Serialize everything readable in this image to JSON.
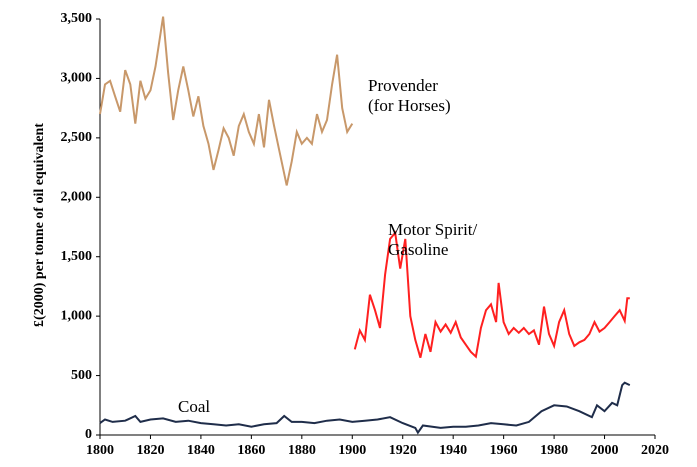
{
  "chart_data": {
    "type": "line",
    "y_label": "£(2000) per tonne of oil equivalent",
    "xlim": [
      1800,
      2020
    ],
    "xticks": [
      1800,
      1820,
      1840,
      1860,
      1880,
      1900,
      1920,
      1940,
      1960,
      1980,
      2000,
      2020
    ],
    "ylim": [
      0,
      3500
    ],
    "yticks": [
      0,
      500,
      {
        "value": 1000,
        "label": "1,000"
      },
      {
        "value": 1500,
        "label": "1,500"
      },
      {
        "value": 2000,
        "label": "2,000"
      },
      {
        "value": 2500,
        "label": "2,500"
      },
      {
        "value": 3000,
        "label": "3,000"
      },
      {
        "value": 3500,
        "label": "3,500"
      }
    ],
    "series": [
      {
        "name": "Provender (for Horses)",
        "labels": [
          "Provender",
          "(for Horses)"
        ],
        "color": "#c8986a",
        "x": [
          1800,
          1802,
          1804,
          1806,
          1808,
          1810,
          1812,
          1814,
          1816,
          1818,
          1820,
          1822,
          1825,
          1827,
          1829,
          1831,
          1833,
          1835,
          1837,
          1839,
          1841,
          1843,
          1845,
          1847,
          1849,
          1851,
          1853,
          1855,
          1857,
          1859,
          1861,
          1863,
          1865,
          1867,
          1869,
          1871,
          1874,
          1876,
          1878,
          1880,
          1882,
          1884,
          1886,
          1888,
          1890,
          1892,
          1894,
          1896,
          1898,
          1900
        ],
        "values": [
          2700,
          2950,
          2980,
          2850,
          2720,
          3070,
          2950,
          2620,
          2980,
          2830,
          2900,
          3100,
          3520,
          3050,
          2650,
          2900,
          3100,
          2900,
          2680,
          2850,
          2600,
          2450,
          2230,
          2400,
          2580,
          2500,
          2350,
          2600,
          2700,
          2550,
          2450,
          2700,
          2420,
          2820,
          2600,
          2400,
          2100,
          2300,
          2550,
          2450,
          2500,
          2450,
          2700,
          2550,
          2650,
          2950,
          3200,
          2750,
          2550,
          2620
        ]
      },
      {
        "name": "Motor Spirit/Gasoline",
        "labels": [
          "Motor Spirit/",
          "Gasoline"
        ],
        "color": "#ff2020",
        "x": [
          1901,
          1903,
          1905,
          1907,
          1909,
          1911,
          1913,
          1915,
          1917,
          1919,
          1921,
          1923,
          1925,
          1927,
          1929,
          1931,
          1933,
          1935,
          1937,
          1939,
          1941,
          1943,
          1945,
          1947,
          1949,
          1951,
          1953,
          1955,
          1957,
          1958,
          1960,
          1962,
          1964,
          1966,
          1968,
          1970,
          1972,
          1974,
          1976,
          1978,
          1980,
          1982,
          1984,
          1986,
          1988,
          1990,
          1992,
          1994,
          1996,
          1998,
          2000,
          2002,
          2004,
          2006,
          2008,
          2009,
          2010
        ],
        "values": [
          720,
          880,
          800,
          1180,
          1050,
          900,
          1350,
          1650,
          1700,
          1400,
          1650,
          1000,
          800,
          650,
          850,
          700,
          950,
          870,
          930,
          860,
          950,
          820,
          760,
          700,
          660,
          900,
          1050,
          1100,
          950,
          1280,
          950,
          850,
          900,
          860,
          900,
          850,
          880,
          760,
          1080,
          850,
          750,
          950,
          1050,
          850,
          750,
          780,
          800,
          850,
          950,
          870,
          900,
          950,
          1000,
          1050,
          960,
          1150,
          1150
        ]
      },
      {
        "name": "Coal",
        "labels": [
          "Coal"
        ],
        "color": "#1f2d4a",
        "x": [
          1800,
          1802,
          1805,
          1810,
          1814,
          1816,
          1820,
          1825,
          1830,
          1835,
          1840,
          1845,
          1850,
          1855,
          1860,
          1865,
          1870,
          1873,
          1876,
          1880,
          1885,
          1890,
          1895,
          1900,
          1905,
          1910,
          1915,
          1920,
          1925,
          1926,
          1928,
          1935,
          1940,
          1945,
          1950,
          1955,
          1960,
          1965,
          1970,
          1975,
          1980,
          1985,
          1990,
          1995,
          1997,
          2000,
          2003,
          2005,
          2007,
          2008,
          2010
        ],
        "values": [
          100,
          130,
          110,
          120,
          160,
          110,
          130,
          140,
          110,
          120,
          100,
          90,
          80,
          90,
          70,
          90,
          100,
          160,
          110,
          110,
          100,
          120,
          130,
          110,
          120,
          130,
          150,
          100,
          60,
          20,
          80,
          60,
          70,
          70,
          80,
          100,
          90,
          80,
          110,
          200,
          250,
          240,
          200,
          150,
          250,
          200,
          270,
          250,
          420,
          440,
          420
        ]
      }
    ]
  }
}
